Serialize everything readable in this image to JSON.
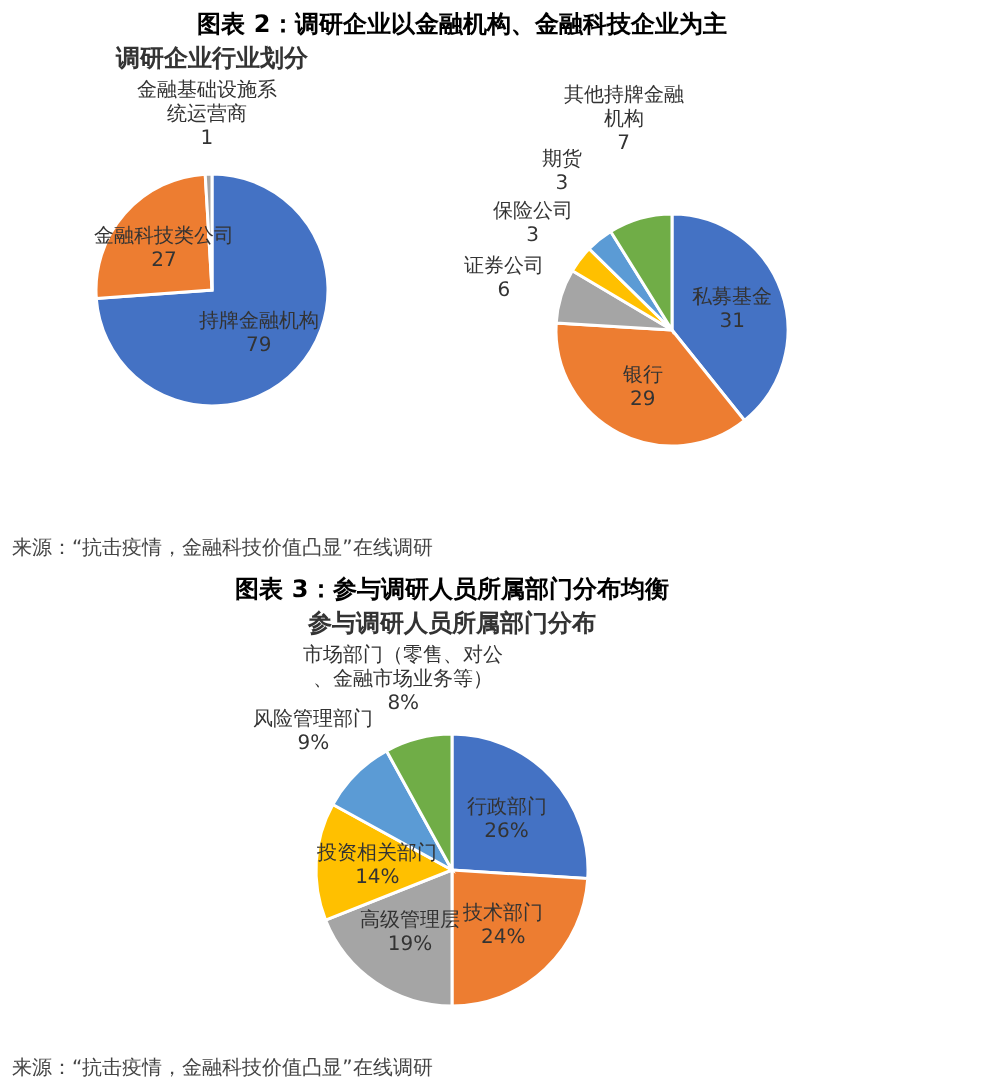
{
  "chart_data": [
    {
      "type": "pie",
      "title": "图表 2：调研企业以金融机构、金融科技企业为主",
      "subtitle": "调研企业行业划分",
      "categories": [
        "持牌金融机构",
        "金融科技类公司",
        "金融基础设施系统运营商"
      ],
      "values": [
        79,
        27,
        1
      ],
      "data_labels": true,
      "colors": [
        "#4472c4",
        "#ed7d31",
        "#a5a5a5"
      ],
      "legend": false,
      "annotations": [
        "来源：“抗击疫情，金融科技价值凸显”在线调研"
      ]
    },
    {
      "type": "pie",
      "categories": [
        "私募基金",
        "银行",
        "证券公司",
        "保险公司",
        "期货",
        "其他持牌金融机构"
      ],
      "values": [
        31,
        29,
        6,
        3,
        3,
        7
      ],
      "data_labels": true,
      "colors": [
        "#4472c4",
        "#ed7d31",
        "#a5a5a5",
        "#ffc000",
        "#5b9bd5",
        "#70ad47"
      ],
      "legend": false
    },
    {
      "type": "pie",
      "title": "图表 3：参与调研人员所属部门分布均衡",
      "subtitle": "参与调研人员所属部门分布",
      "categories": [
        "行政部门",
        "技术部门",
        "高级管理层",
        "投资相关部门",
        "风险管理部门",
        "市场部门（零售、对公、金融市场业务等）"
      ],
      "values": [
        26,
        24,
        19,
        14,
        9,
        8
      ],
      "value_labels": [
        "26%",
        "24%",
        "19%",
        "14%",
        "9%",
        "8%"
      ],
      "colors": [
        "#4472c4",
        "#ed7d31",
        "#a5a5a5",
        "#ffc000",
        "#5b9bd5",
        "#70ad47"
      ],
      "legend": false,
      "annotations": [
        "来源：“抗击疫情，金融科技价值凸显”在线调研"
      ]
    }
  ]
}
